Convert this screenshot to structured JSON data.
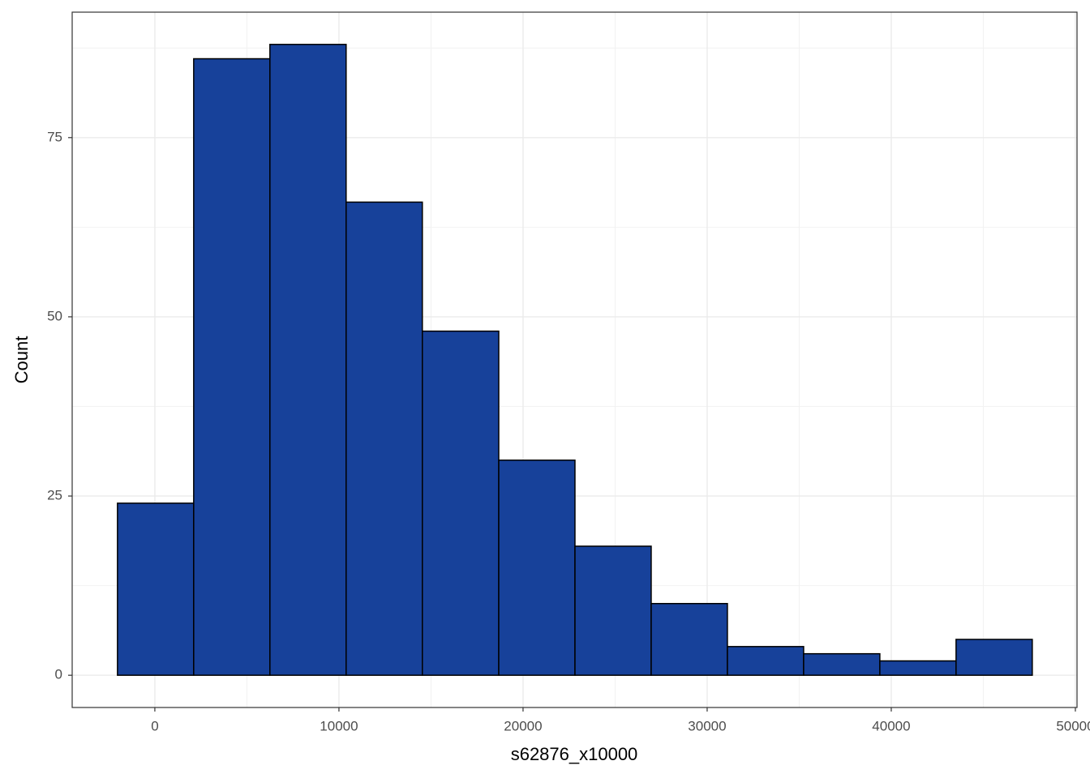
{
  "chart_data": {
    "type": "histogram",
    "x_label": "s62876_x10000",
    "y_label": "Count",
    "bins": [
      -2030,
      2110,
      6250,
      10390,
      14530,
      18680,
      22820,
      26960,
      31100,
      35240,
      39380,
      43520,
      47660
    ],
    "values": [
      24,
      86,
      88,
      66,
      48,
      30,
      18,
      10,
      4,
      3,
      2,
      5
    ],
    "color": "#17419a",
    "xlim": [
      -4490,
      50090
    ],
    "xticks": [
      0,
      10000,
      20000,
      30000,
      40000,
      50000
    ],
    "ylim": [
      -4.5,
      92.5
    ],
    "yticks": [
      0,
      25,
      50,
      75
    ],
    "grid": true
  }
}
